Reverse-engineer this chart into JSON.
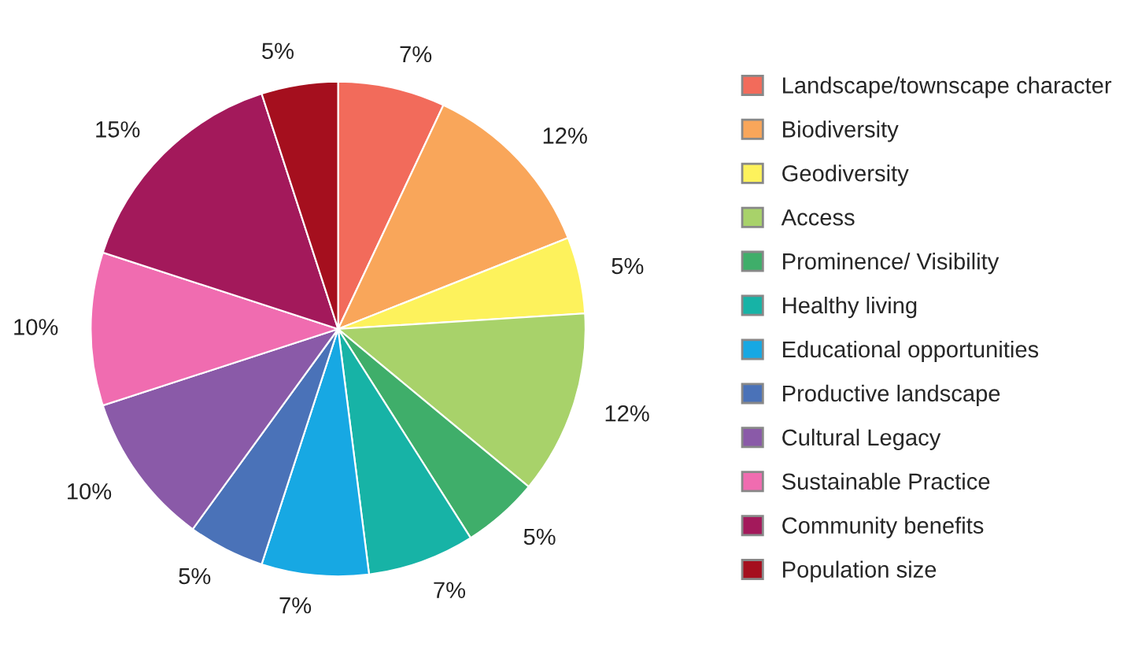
{
  "chart_data": {
    "type": "pie",
    "categories": [
      "Landscape/townscape character",
      "Biodiversity",
      "Geodiversity",
      "Access",
      "Prominence/ Visibility",
      "Healthy living",
      "Educational opportunities",
      "Productive landscape",
      "Cultural Legacy",
      "Sustainable Practice",
      "Community benefits",
      "Population size"
    ],
    "values": [
      7,
      12,
      5,
      12,
      5,
      7,
      7,
      5,
      10,
      10,
      15,
      5
    ],
    "colors": [
      "#f26b5b",
      "#f9a65a",
      "#fdf25c",
      "#a8d26a",
      "#3fae6a",
      "#17b3a6",
      "#17a8e3",
      "#4a72b8",
      "#8a5aa8",
      "#f06cb0",
      "#a3195b",
      "#a50f1e"
    ],
    "value_labels": [
      "7%",
      "12%",
      "5%",
      "12%",
      "5%",
      "7%",
      "7%",
      "5%",
      "10%",
      "10%",
      "15%",
      "5%"
    ],
    "legend": "right"
  }
}
